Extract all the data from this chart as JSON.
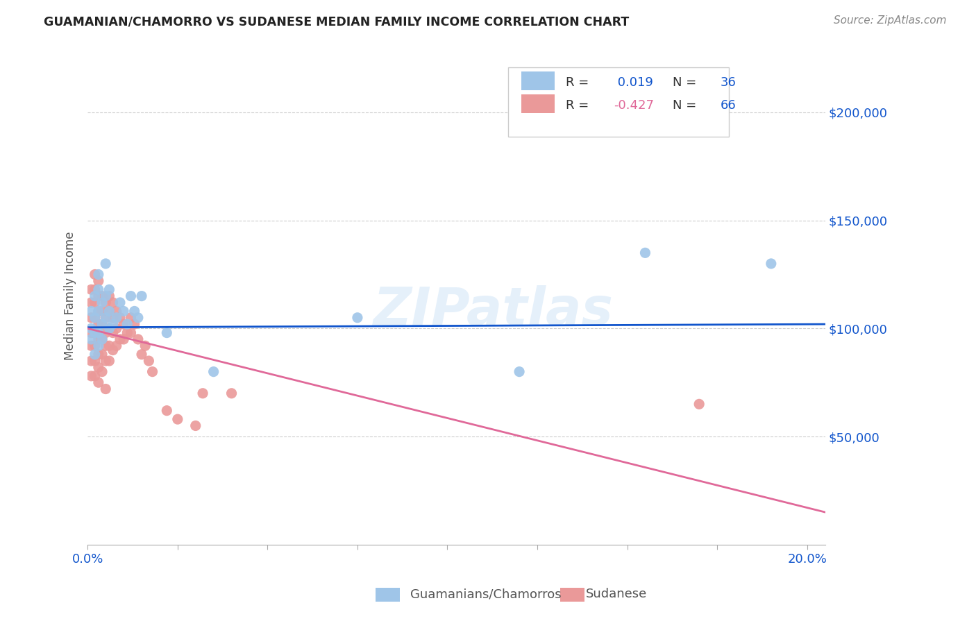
{
  "title": "GUAMANIAN/CHAMORRO VS SUDANESE MEDIAN FAMILY INCOME CORRELATION CHART",
  "source": "Source: ZipAtlas.com",
  "ylabel": "Median Family Income",
  "watermark": "ZIPatlas",
  "blue_R": "0.019",
  "blue_N": "36",
  "pink_R": "-0.427",
  "pink_N": "66",
  "ytick_labels": [
    "$50,000",
    "$100,000",
    "$150,000",
    "$200,000"
  ],
  "ytick_values": [
    50000,
    100000,
    150000,
    200000
  ],
  "ylim": [
    0,
    230000
  ],
  "xlim": [
    0.0,
    0.205
  ],
  "blue_color": "#9fc5e8",
  "pink_color": "#ea9999",
  "blue_line_color": "#1155cc",
  "pink_line_color": "#e06999",
  "legend_label_blue": "Guamanians/Chamorros",
  "legend_label_pink": "Sudanese",
  "blue_points_x": [
    0.001,
    0.001,
    0.001,
    0.002,
    0.002,
    0.002,
    0.002,
    0.003,
    0.003,
    0.003,
    0.003,
    0.003,
    0.004,
    0.004,
    0.004,
    0.005,
    0.005,
    0.005,
    0.006,
    0.006,
    0.006,
    0.007,
    0.008,
    0.009,
    0.01,
    0.011,
    0.012,
    0.013,
    0.014,
    0.015,
    0.022,
    0.035,
    0.075,
    0.12,
    0.155,
    0.19
  ],
  "blue_points_y": [
    100000,
    108000,
    95000,
    115000,
    105000,
    98000,
    88000,
    125000,
    118000,
    108000,
    98000,
    92000,
    112000,
    102000,
    95000,
    130000,
    115000,
    105000,
    118000,
    108000,
    100000,
    102000,
    105000,
    112000,
    108000,
    102000,
    115000,
    108000,
    105000,
    115000,
    98000,
    80000,
    105000,
    80000,
    135000,
    130000
  ],
  "pink_points_x": [
    0.001,
    0.001,
    0.001,
    0.001,
    0.001,
    0.001,
    0.001,
    0.002,
    0.002,
    0.002,
    0.002,
    0.002,
    0.002,
    0.002,
    0.002,
    0.003,
    0.003,
    0.003,
    0.003,
    0.003,
    0.003,
    0.003,
    0.003,
    0.004,
    0.004,
    0.004,
    0.004,
    0.004,
    0.004,
    0.005,
    0.005,
    0.005,
    0.005,
    0.005,
    0.005,
    0.006,
    0.006,
    0.006,
    0.006,
    0.006,
    0.007,
    0.007,
    0.007,
    0.007,
    0.008,
    0.008,
    0.008,
    0.009,
    0.009,
    0.01,
    0.01,
    0.011,
    0.012,
    0.012,
    0.013,
    0.014,
    0.015,
    0.016,
    0.017,
    0.018,
    0.022,
    0.025,
    0.03,
    0.032,
    0.04,
    0.17
  ],
  "pink_points_y": [
    118000,
    112000,
    105000,
    98000,
    92000,
    85000,
    78000,
    125000,
    118000,
    112000,
    105000,
    98000,
    92000,
    85000,
    78000,
    122000,
    115000,
    108000,
    102000,
    95000,
    88000,
    82000,
    75000,
    115000,
    108000,
    102000,
    95000,
    88000,
    80000,
    112000,
    105000,
    98000,
    92000,
    85000,
    72000,
    115000,
    108000,
    100000,
    92000,
    85000,
    112000,
    105000,
    98000,
    90000,
    108000,
    100000,
    92000,
    105000,
    95000,
    102000,
    95000,
    98000,
    105000,
    98000,
    102000,
    95000,
    88000,
    92000,
    85000,
    80000,
    62000,
    58000,
    55000,
    70000,
    70000,
    65000
  ],
  "blue_line_x0": 0.0,
  "blue_line_y0": 100500,
  "blue_line_x1": 0.205,
  "blue_line_y1": 102000,
  "pink_line_x0": 0.0,
  "pink_line_y0": 100000,
  "pink_line_x1": 0.205,
  "pink_line_y1": 15000,
  "x_minor_ticks": [
    0.0,
    0.025,
    0.05,
    0.075,
    0.1,
    0.125,
    0.15,
    0.175,
    0.2
  ],
  "background_color": "#ffffff"
}
